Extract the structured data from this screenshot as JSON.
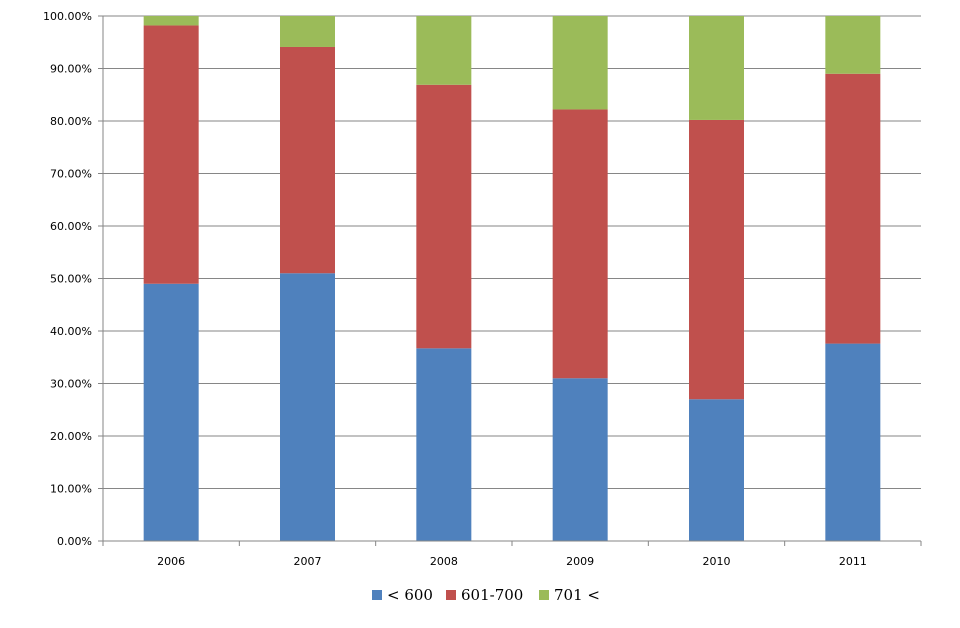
{
  "chart_data": {
    "type": "bar",
    "stacked": true,
    "percent_stacked": true,
    "categories": [
      "2006",
      "2007",
      "2008",
      "2009",
      "2010",
      "2011"
    ],
    "series": [
      {
        "name": "< 600",
        "color": "#4F81BD",
        "values": [
          49.0,
          51.0,
          36.7,
          31.0,
          27.0,
          37.6
        ]
      },
      {
        "name": "601-700",
        "color": "#C0504D",
        "values": [
          49.2,
          43.1,
          50.2,
          51.2,
          53.2,
          51.4
        ]
      },
      {
        "name": "701 <",
        "color": "#9BBB59",
        "values": [
          1.8,
          5.9,
          13.1,
          17.8,
          19.8,
          11.0
        ]
      }
    ],
    "y_ticks": [
      "0.00%",
      "10.00%",
      "20.00%",
      "30.00%",
      "40.00%",
      "50.00%",
      "60.00%",
      "70.00%",
      "80.00%",
      "90.00%",
      "100.00%"
    ],
    "ylim": [
      0,
      100
    ],
    "grid": true,
    "legend_position": "bottom",
    "title": "",
    "xlabel": "",
    "ylabel": ""
  }
}
